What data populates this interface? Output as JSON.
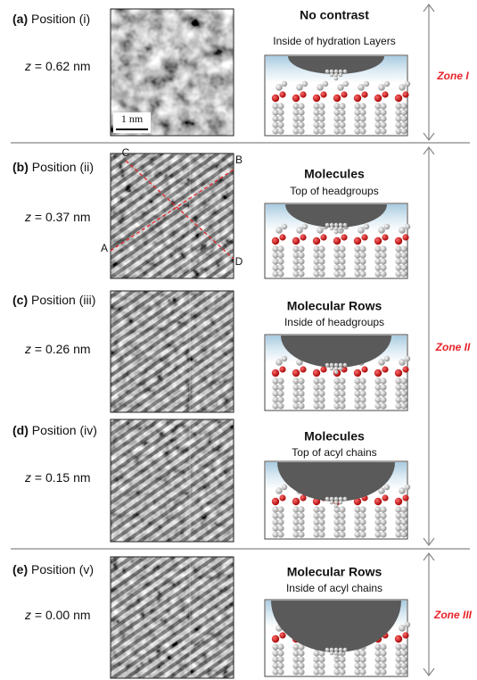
{
  "panels": [
    {
      "label": "(a)",
      "position": "Position (i)",
      "z_symbol": "z",
      "z_value": "= 0.62 nm",
      "title": "No contrast",
      "subtitle": "Inside of hydration Layers"
    },
    {
      "label": "(b)",
      "position": "Position (ii)",
      "z_symbol": "z",
      "z_value": "= 0.37 nm",
      "title": "Molecules",
      "subtitle": "Top of headgroups"
    },
    {
      "label": "(c)",
      "position": "Position (iii)",
      "z_symbol": "z",
      "z_value": "= 0.26 nm",
      "title": "Molecular Rows",
      "subtitle": "Inside of headgroups"
    },
    {
      "label": "(d)",
      "position": "Position (iv)",
      "z_symbol": "z",
      "z_value": "= 0.15 nm",
      "title": "Molecules",
      "subtitle": "Top of acyl chains"
    },
    {
      "label": "(e)",
      "position": "Position (v)",
      "z_symbol": "z",
      "z_value": "= 0.00 nm",
      "title": "Molecular Rows",
      "subtitle": "Inside of acyl chains"
    }
  ],
  "scale_bar": "1 nm",
  "line_labels": [
    "A",
    "B",
    "C",
    "D"
  ],
  "zones": [
    "Zone I",
    "Zone II",
    "Zone III"
  ]
}
